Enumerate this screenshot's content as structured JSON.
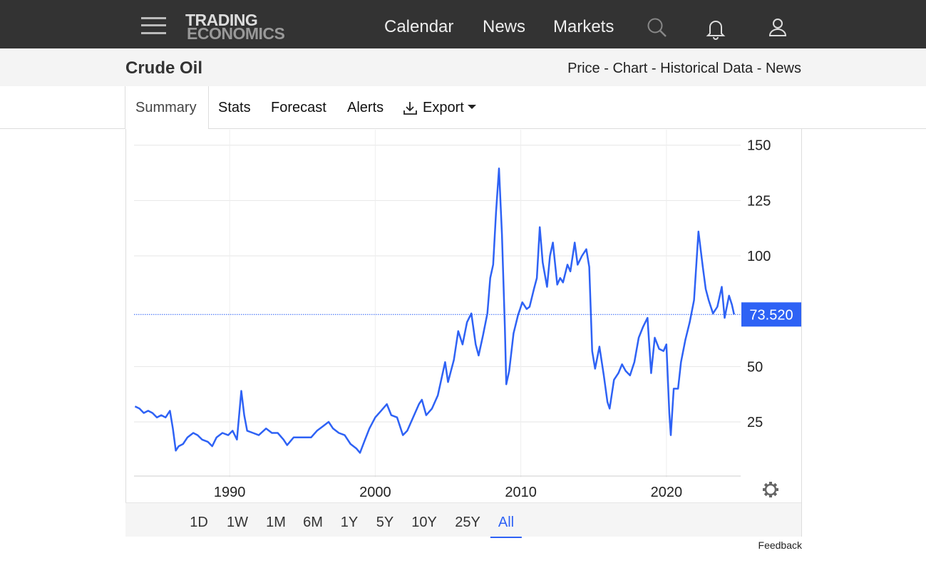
{
  "header": {
    "logo_top": "TRADING",
    "logo_bottom": "ECONOMICS",
    "nav": [
      "Calendar",
      "News",
      "Markets"
    ]
  },
  "subheader": {
    "title": "Crude Oil",
    "links": [
      "Price",
      "Chart",
      "Historical Data",
      "News"
    ],
    "link_separator": "-"
  },
  "tabs": [
    "Summary",
    "Stats",
    "Forecast",
    "Alerts",
    "Export"
  ],
  "ranges": [
    "1D",
    "1W",
    "1M",
    "6M",
    "1Y",
    "5Y",
    "10Y",
    "25Y",
    "All"
  ],
  "active_range": "All",
  "feedback": "Feedback",
  "chart_data": {
    "type": "line",
    "color": "#2e62f5",
    "x": [
      1983.5,
      1983.8,
      1984.1,
      1984.4,
      1984.7,
      1985.0,
      1985.3,
      1985.6,
      1985.9,
      1986.1,
      1986.3,
      1986.5,
      1986.8,
      1987.1,
      1987.5,
      1987.8,
      1988.1,
      1988.5,
      1988.8,
      1989.1,
      1989.5,
      1989.9,
      1990.2,
      1990.5,
      1990.8,
      1991.0,
      1991.2,
      1991.6,
      1992.0,
      1992.5,
      1992.9,
      1993.3,
      1993.7,
      1993.95,
      1994.4,
      1994.8,
      1995.2,
      1995.6,
      1996.0,
      1996.4,
      1996.8,
      1997.1,
      1997.5,
      1997.9,
      1998.3,
      1998.7,
      1998.95,
      1999.3,
      1999.6,
      2000.0,
      2000.4,
      2000.8,
      2001.1,
      2001.5,
      2001.9,
      2002.2,
      2002.6,
      2003.0,
      2003.2,
      2003.5,
      2003.9,
      2004.3,
      2004.8,
      2005.0,
      2005.4,
      2005.7,
      2006.0,
      2006.3,
      2006.6,
      2006.9,
      2007.1,
      2007.4,
      2007.7,
      2007.9,
      2008.1,
      2008.3,
      2008.5,
      2008.7,
      2008.9,
      2009.0,
      2009.2,
      2009.5,
      2009.8,
      2010.1,
      2010.4,
      2010.6,
      2010.9,
      2011.1,
      2011.3,
      2011.5,
      2011.8,
      2012.0,
      2012.2,
      2012.5,
      2012.7,
      2012.9,
      2013.2,
      2013.4,
      2013.7,
      2013.9,
      2014.2,
      2014.5,
      2014.7,
      2014.9,
      2015.1,
      2015.4,
      2015.7,
      2015.95,
      2016.1,
      2016.4,
      2016.7,
      2016.95,
      2017.2,
      2017.5,
      2017.8,
      2018.1,
      2018.4,
      2018.7,
      2018.95,
      2019.2,
      2019.5,
      2019.8,
      2020.0,
      2020.2,
      2020.3,
      2020.5,
      2020.8,
      2021.0,
      2021.3,
      2021.6,
      2021.9,
      2022.2,
      2022.5,
      2022.7,
      2022.9,
      2023.2,
      2023.5,
      2023.8,
      2024.0,
      2024.3,
      2024.5,
      2024.65
    ],
    "values": [
      32,
      31,
      29,
      30,
      29,
      27,
      28,
      27,
      30,
      22,
      12,
      14,
      15,
      18,
      20,
      19,
      17,
      16,
      14,
      18,
      20,
      19,
      21,
      17,
      39,
      28,
      21,
      20,
      19,
      22,
      20,
      20,
      17,
      14.5,
      18,
      18,
      18,
      18,
      21,
      23,
      25,
      22,
      20,
      19,
      15,
      13,
      11,
      17,
      22,
      27,
      30,
      33,
      28,
      27,
      19,
      21,
      27,
      33,
      35,
      28,
      31,
      37,
      52,
      43,
      53,
      66,
      60,
      70,
      74,
      60,
      55,
      64,
      74,
      90,
      96,
      120,
      139.5,
      110,
      68,
      42,
      48,
      65,
      73,
      79,
      76,
      77,
      85,
      90,
      113,
      97,
      86,
      100,
      106,
      87,
      90,
      88,
      96,
      93,
      106,
      96,
      100,
      103,
      95,
      57,
      49,
      59,
      46,
      34,
      31,
      44,
      47,
      51,
      48,
      46,
      52,
      63,
      68,
      72,
      47,
      63,
      58,
      57,
      60,
      29,
      19,
      40,
      40,
      52,
      62,
      70,
      80,
      111,
      95,
      85,
      80,
      74,
      77,
      86,
      72,
      82,
      78,
      73.52
    ],
    "xlim": [
      1983.43,
      2025.1
    ],
    "ylim": [
      0,
      157
    ],
    "xticks": [
      1990,
      2000,
      2010,
      2020
    ],
    "yticks": [
      25,
      50,
      100,
      125,
      150
    ],
    "grid": true,
    "current": {
      "value": 73.52,
      "label": "73.520"
    }
  }
}
